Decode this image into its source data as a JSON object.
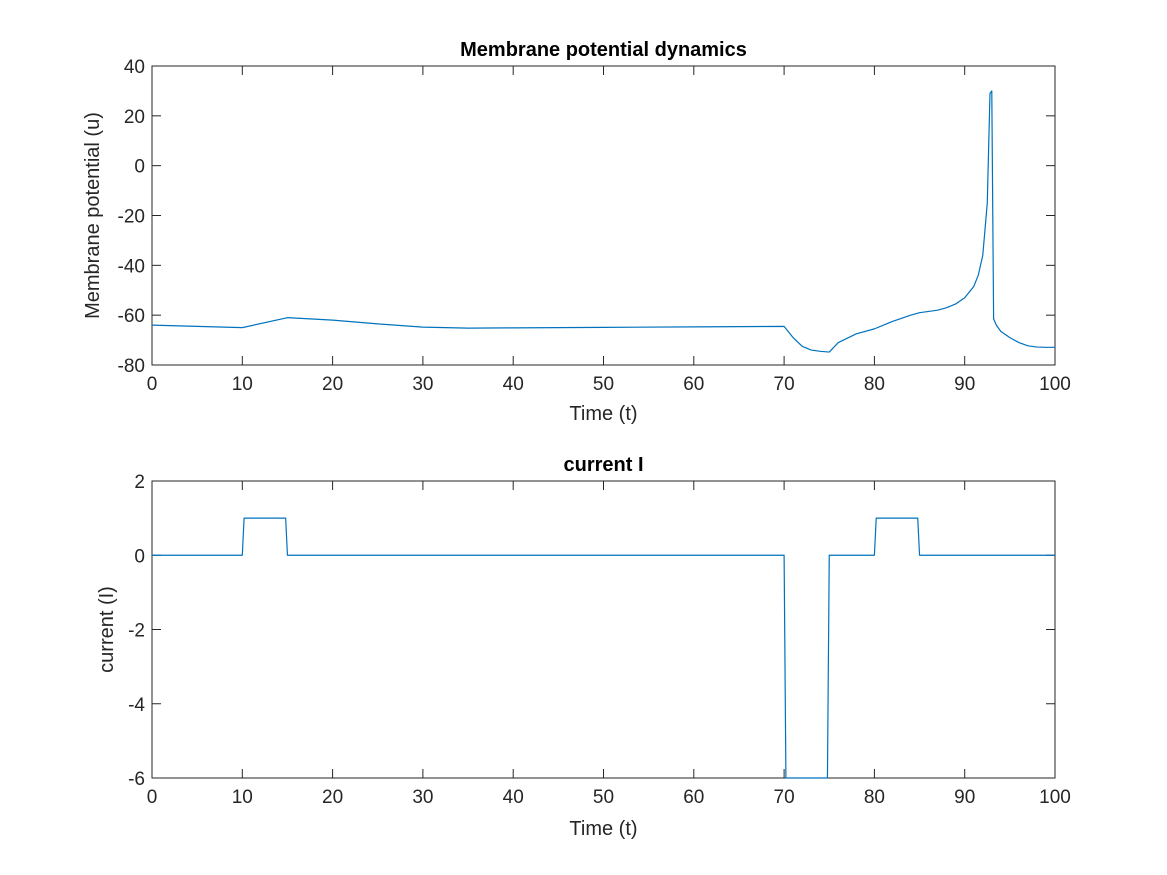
{
  "chart_data": [
    {
      "type": "line",
      "title": "Membrane potential dynamics",
      "xlabel": "Time (t)",
      "ylabel": "Membrane potential (u)",
      "xlim": [
        0,
        100
      ],
      "ylim": [
        -80,
        40
      ],
      "xticks": [
        "0",
        "10",
        "20",
        "30",
        "40",
        "50",
        "60",
        "70",
        "80",
        "90",
        "100"
      ],
      "yticks": [
        "-80",
        "-60",
        "-40",
        "-20",
        "0",
        "20",
        "40"
      ],
      "grid": false,
      "series": [
        {
          "color": "#0072BD",
          "x": [
            0,
            5,
            10,
            15,
            20,
            25,
            30,
            35,
            40,
            50,
            60,
            70,
            71,
            72,
            73,
            74,
            75,
            76,
            78,
            80,
            82,
            84,
            85,
            87,
            88,
            89,
            90,
            91,
            91.5,
            92,
            92.5,
            92.8,
            93,
            93.2,
            93.5,
            94,
            95,
            96,
            97,
            98,
            99,
            100
          ],
          "y": [
            -64,
            -64.5,
            -65,
            -61,
            -62,
            -63.5,
            -64.8,
            -65.2,
            -65.1,
            -64.9,
            -64.7,
            -64.5,
            -69,
            -72.5,
            -74,
            -74.5,
            -74.8,
            -71,
            -67.5,
            -65.5,
            -62.5,
            -60,
            -59,
            -58,
            -57,
            -55.5,
            -53,
            -48.5,
            -44,
            -36,
            -15,
            29,
            30,
            -61.5,
            -64,
            -66.5,
            -69,
            -71,
            -72.3,
            -72.8,
            -72.9,
            -72.9
          ]
        }
      ]
    },
    {
      "type": "line",
      "title": "current I",
      "xlabel": "Time (t)",
      "ylabel": "current (I)",
      "xlim": [
        0,
        100
      ],
      "ylim": [
        -6,
        2
      ],
      "xticks": [
        "0",
        "10",
        "20",
        "30",
        "40",
        "50",
        "60",
        "70",
        "80",
        "90",
        "100"
      ],
      "yticks": [
        "-6",
        "-4",
        "-2",
        "0",
        "2"
      ],
      "grid": false,
      "series": [
        {
          "color": "#0072BD",
          "x": [
            0,
            10,
            10.2,
            14.8,
            15,
            70,
            70.2,
            74.8,
            75,
            80,
            80.2,
            84.8,
            85,
            100
          ],
          "y": [
            0,
            0,
            1,
            1,
            0,
            0,
            -6,
            -6,
            0,
            0,
            1,
            1,
            0,
            0
          ]
        }
      ]
    }
  ]
}
